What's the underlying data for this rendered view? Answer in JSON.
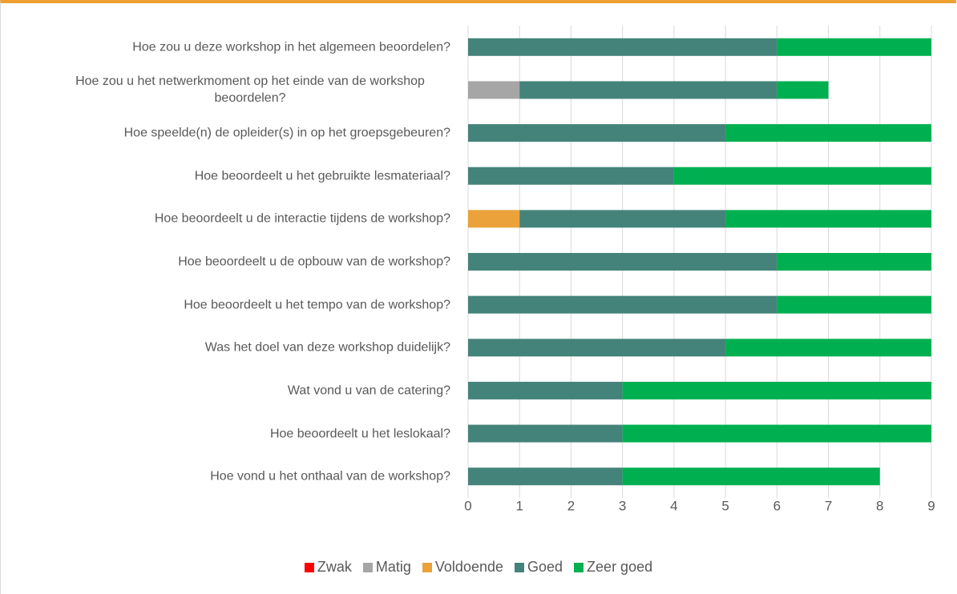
{
  "chart_data": {
    "type": "stacked_bar_horizontal",
    "categories": [
      "Hoe zou u deze workshop in het algemeen beoordelen?",
      "Hoe zou u het netwerkmoment op het einde van de workshop beoordelen?",
      "Hoe speelde(n) de opleider(s) in op het groepsgebeuren?",
      "Hoe beoordeelt u het gebruikte lesmateriaal?",
      "Hoe beoordeelt u de interactie tijdens de workshop?",
      "Hoe beoordeelt u de opbouw van de workshop?",
      "Hoe beoordeelt u het tempo van de workshop?",
      "Was het doel van deze workshop duidelijk?",
      "Wat vond u van de catering?",
      "Hoe beoordeelt u het leslokaal?",
      "Hoe vond u het onthaal van de workshop?"
    ],
    "series": [
      {
        "name": "Zwak",
        "color": "#ff0000",
        "values": [
          0,
          0,
          0,
          0,
          0,
          0,
          0,
          0,
          0,
          0,
          0
        ]
      },
      {
        "name": "Matig",
        "color": "#a6a6a6",
        "values": [
          0,
          1,
          0,
          0,
          0,
          0,
          0,
          0,
          0,
          0,
          0
        ]
      },
      {
        "name": "Voldoende",
        "color": "#eba23a",
        "values": [
          0,
          0,
          0,
          0,
          1,
          0,
          0,
          0,
          0,
          0,
          0
        ]
      },
      {
        "name": "Goed",
        "color": "#44837a",
        "values": [
          6,
          5,
          5,
          4,
          4,
          6,
          6,
          5,
          3,
          3,
          3
        ]
      },
      {
        "name": "Zeer goed",
        "color": "#00b050",
        "values": [
          3,
          1,
          4,
          5,
          4,
          3,
          3,
          4,
          6,
          6,
          5
        ]
      }
    ],
    "xlim": [
      0,
      9
    ],
    "xticks": [
      0,
      1,
      2,
      3,
      4,
      5,
      6,
      7,
      8,
      9
    ],
    "grid": true,
    "legend": "bottom"
  }
}
